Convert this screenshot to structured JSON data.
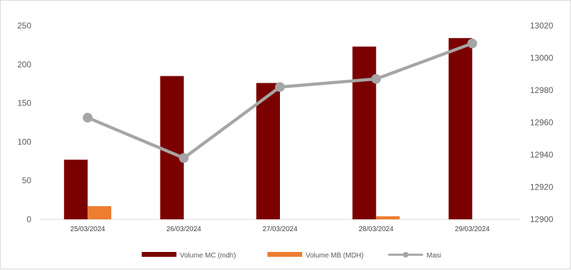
{
  "chart_data": {
    "type": "bar",
    "title": "",
    "categories": [
      "25/03/2024",
      "26/03/2024",
      "27/03/2024",
      "28/03/2024",
      "29/03/2024"
    ],
    "series": [
      {
        "name": "Volume MC (mdh)",
        "type": "bar",
        "axis": "left",
        "color": "#7b0000",
        "values": [
          77,
          185,
          176,
          223,
          234
        ]
      },
      {
        "name": "Volume MB (MDH)",
        "type": "bar",
        "axis": "left",
        "color": "#ed7d31",
        "values": [
          17,
          0,
          0,
          4,
          0
        ]
      },
      {
        "name": "Masi",
        "type": "line",
        "axis": "right",
        "color": "#a5a5a5",
        "values": [
          12963,
          12938,
          12982,
          12987,
          13009
        ]
      }
    ],
    "y_left": {
      "min": 0,
      "max": 250,
      "ticks": [
        0,
        50,
        100,
        150,
        200,
        250
      ]
    },
    "y_right": {
      "min": 12900,
      "max": 13020,
      "ticks": [
        12900,
        12920,
        12940,
        12960,
        12980,
        13000,
        13020
      ]
    },
    "grid": false,
    "legend_position": "bottom"
  }
}
